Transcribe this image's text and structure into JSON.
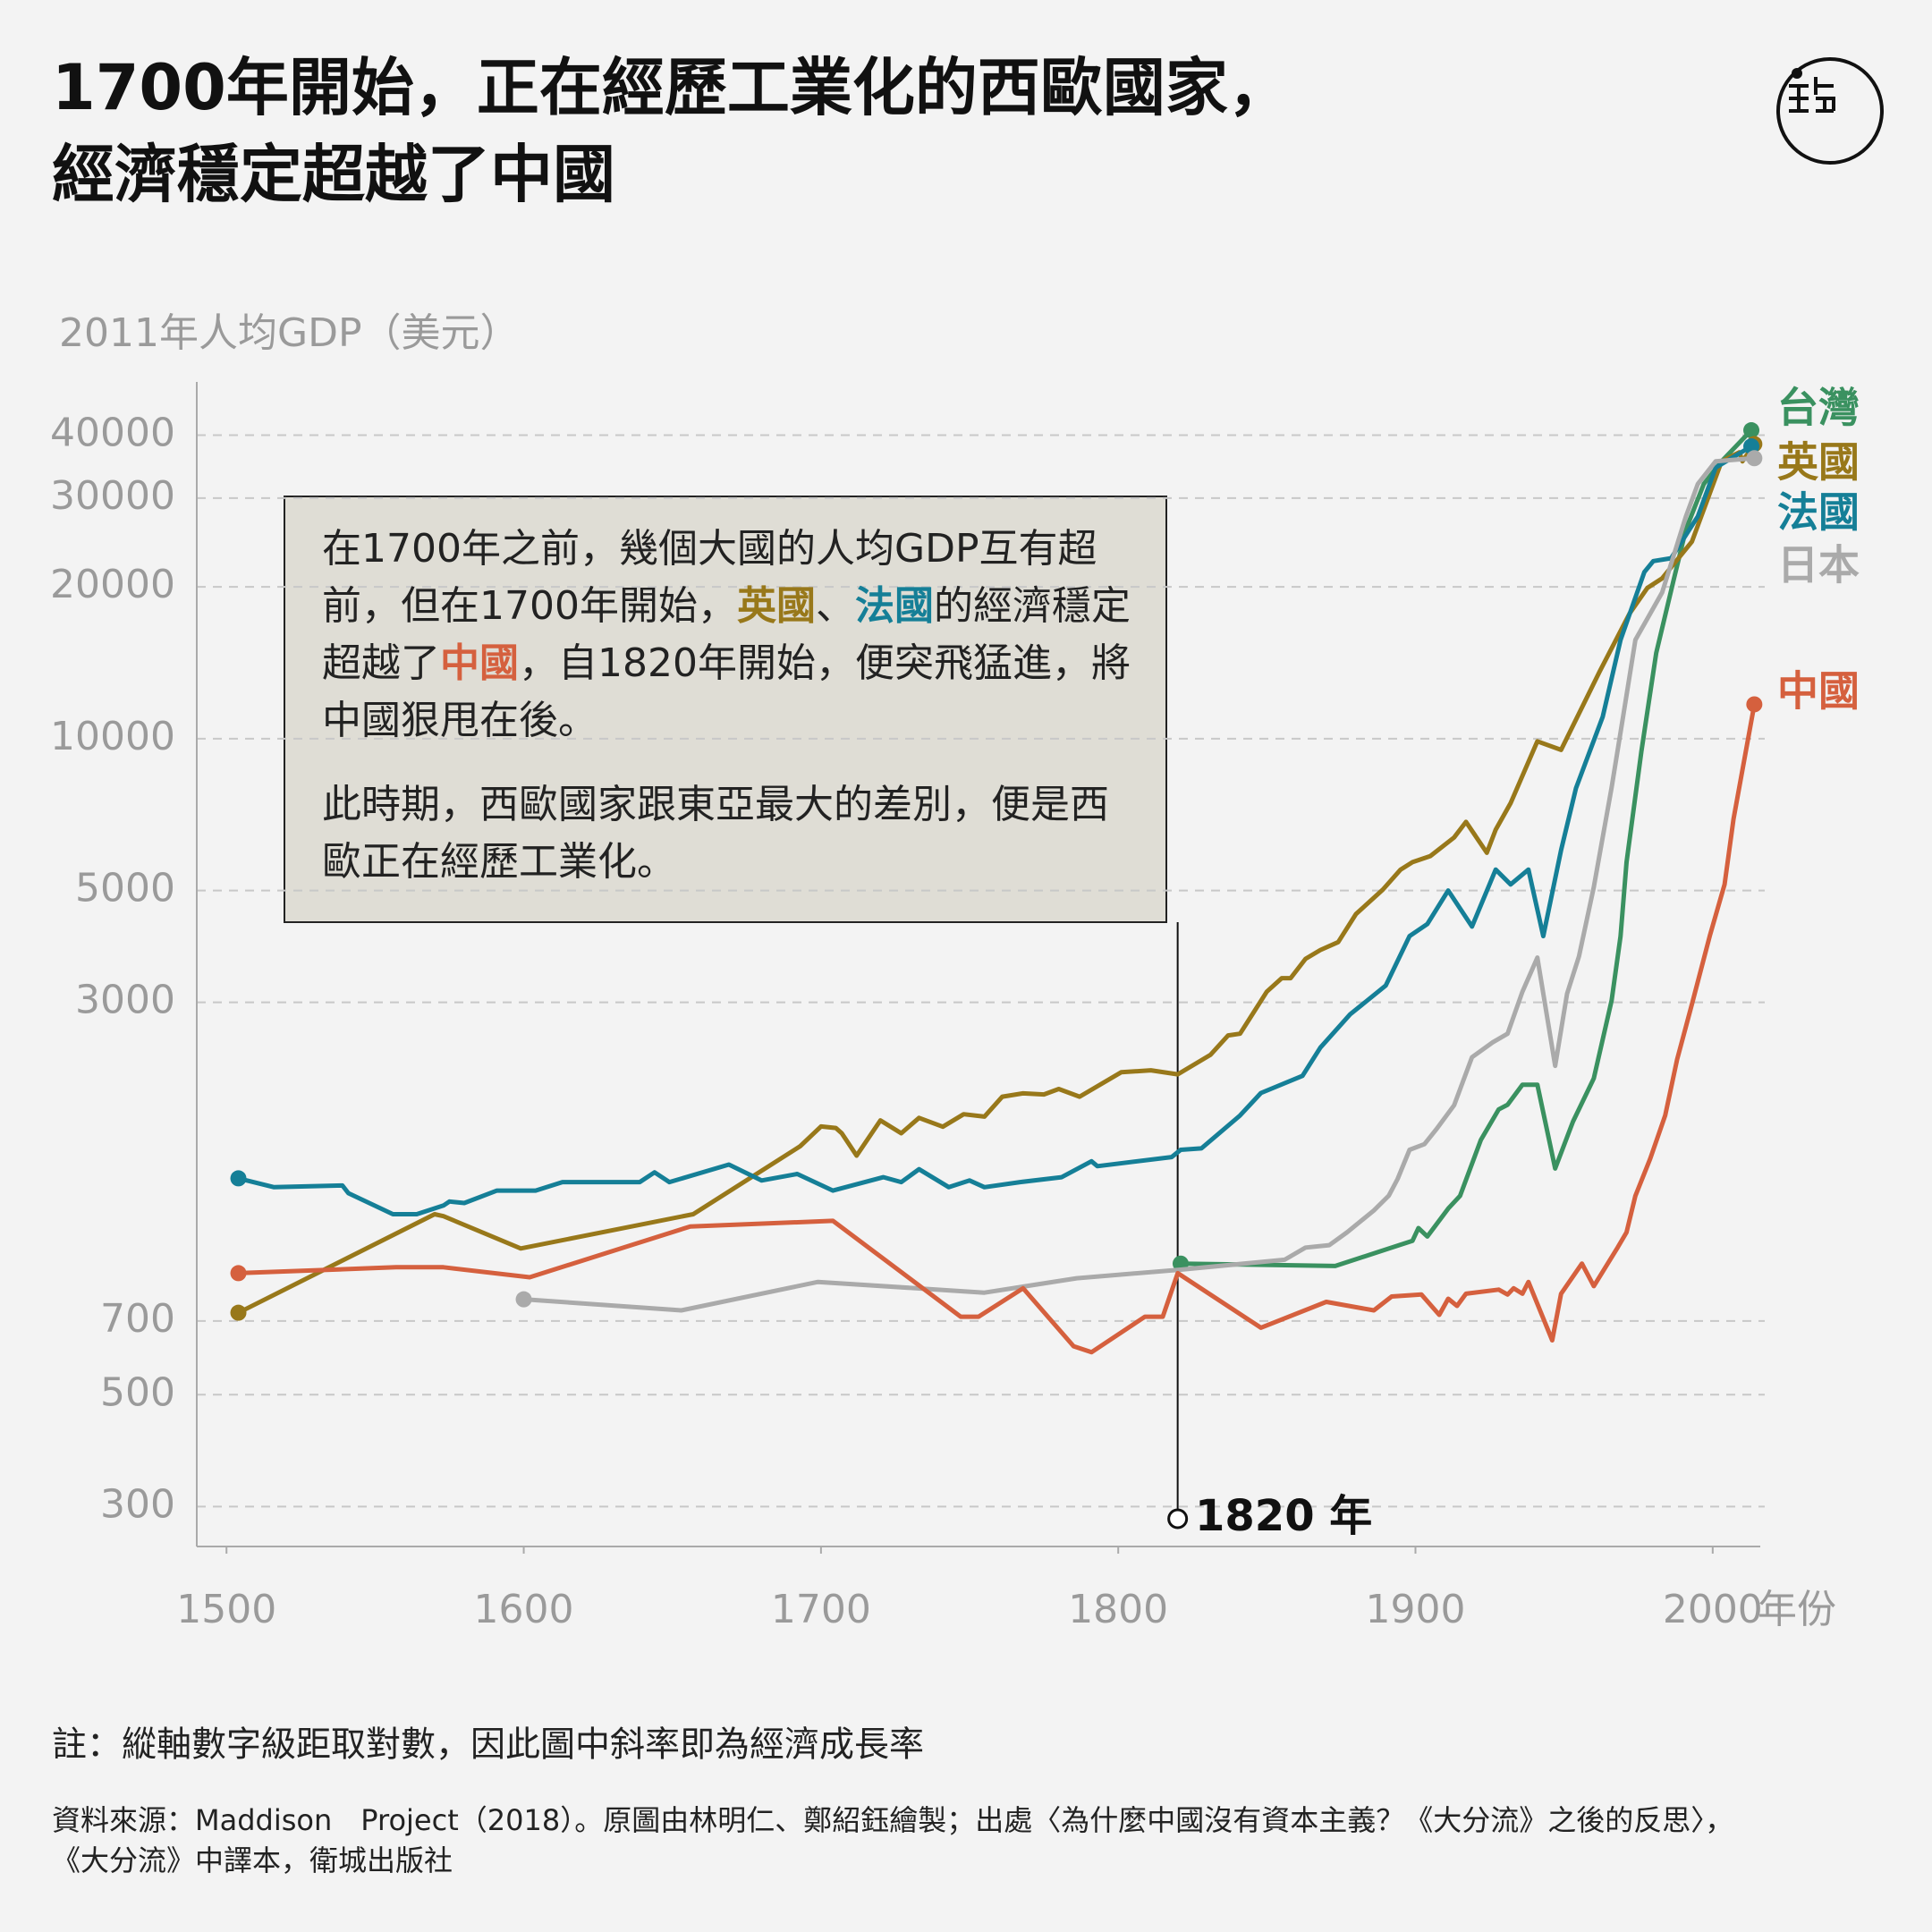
{
  "chart_data": {
    "type": "line",
    "title": [
      "1700年開始，正在經歷工業化的西歐國家，",
      "經濟穩定超越了中國"
    ],
    "y_label": "2011年人均GDP（美元）",
    "x_label": "年份",
    "log_scale": true,
    "grid": true,
    "xlim": [
      1490,
      2016
    ],
    "xticks": [
      1500,
      1600,
      1700,
      1800,
      1900,
      2000
    ],
    "ylim": [
      250,
      51000
    ],
    "yticks": [
      300,
      500,
      700,
      3000,
      5000,
      10000,
      20000,
      30000,
      40000
    ],
    "series": [
      {
        "name": "台灣",
        "color": "#3a9160",
        "x": [
          1821,
          1873,
          1899,
          1901,
          1904,
          1911,
          1915,
          1922,
          1928,
          1931,
          1936,
          1941,
          1947,
          1953,
          1960,
          1966,
          1969,
          1971,
          1976,
          1981,
          1987,
          1991,
          1997,
          2003,
          2013
        ],
        "values": [
          910,
          900,
          1010,
          1070,
          1030,
          1170,
          1240,
          1600,
          1840,
          1880,
          2060,
          2060,
          1405,
          1740,
          2120,
          3025,
          4060,
          5690,
          9440,
          14800,
          20800,
          26000,
          32000,
          35500,
          40900
        ]
      },
      {
        "name": "英國",
        "color": "#98781a",
        "x": [
          1504,
          1570,
          1573,
          1599,
          1657,
          1693,
          1700,
          1705,
          1707,
          1712,
          1720,
          1727,
          1733,
          1741,
          1748,
          1755,
          1761,
          1768,
          1775,
          1780,
          1787,
          1801,
          1811,
          1820,
          1831,
          1837,
          1841,
          1850,
          1855,
          1858,
          1863,
          1868,
          1874,
          1880,
          1889,
          1895,
          1899,
          1905,
          1913,
          1917,
          1924,
          1927,
          1932,
          1941,
          1949,
          1962,
          1972,
          1978,
          1983,
          1993,
          2003,
          2009,
          2010,
          2014
        ],
        "values": [
          727,
          1140,
          1130,
          975,
          1140,
          1555,
          1702,
          1690,
          1650,
          1490,
          1750,
          1650,
          1770,
          1700,
          1800,
          1780,
          1950,
          1980,
          1970,
          2020,
          1950,
          2180,
          2200,
          2160,
          2360,
          2580,
          2600,
          3150,
          3350,
          3350,
          3660,
          3810,
          3950,
          4490,
          5020,
          5500,
          5690,
          5850,
          6370,
          6840,
          5940,
          6600,
          7450,
          9880,
          9500,
          13600,
          17700,
          19900,
          20800,
          24600,
          35500,
          37000,
          35500,
          38400
        ]
      },
      {
        "name": "法國",
        "color": "#157f97",
        "x": [
          1504,
          1516,
          1539,
          1541,
          1556,
          1564,
          1573,
          1575,
          1580,
          1591,
          1604,
          1613,
          1639,
          1644,
          1649,
          1669,
          1680,
          1692,
          1704,
          1721,
          1727,
          1733,
          1743,
          1750,
          1755,
          1767,
          1781,
          1791,
          1793,
          1818,
          1821,
          1828,
          1841,
          1848,
          1862,
          1868,
          1878,
          1890,
          1898,
          1904,
          1911,
          1919,
          1927,
          1932,
          1938,
          1943,
          1949,
          1954,
          1963,
          1969,
          1977,
          1980,
          1986,
          1995,
          2001,
          2013
        ],
        "values": [
          1343,
          1290,
          1300,
          1255,
          1140,
          1140,
          1186,
          1208,
          1200,
          1270,
          1270,
          1320,
          1320,
          1380,
          1320,
          1430,
          1330,
          1370,
          1270,
          1350,
          1320,
          1400,
          1290,
          1330,
          1290,
          1320,
          1350,
          1452,
          1420,
          1480,
          1530,
          1540,
          1790,
          1983,
          2145,
          2440,
          2840,
          3240,
          4060,
          4290,
          5000,
          4240,
          5500,
          5140,
          5500,
          4060,
          6010,
          7980,
          11060,
          15700,
          21400,
          22500,
          22800,
          27600,
          34500,
          38000
        ]
      },
      {
        "name": "日本",
        "color": "#aaaaaa",
        "x": [
          1600,
          1653,
          1699,
          1755,
          1786,
          1821,
          1856,
          1863,
          1871,
          1877,
          1886,
          1891,
          1894,
          1898,
          1903,
          1907,
          1913,
          1919,
          1926,
          1931,
          1936,
          1941,
          1947,
          1951,
          1955,
          1960,
          1966,
          1970,
          1974,
          1983,
          1991,
          1995,
          2001,
          2014
        ],
        "values": [
          773,
          735,
          837,
          797,
          851,
          885,
          926,
          979,
          990,
          1050,
          1160,
          1240,
          1340,
          1530,
          1570,
          1680,
          1875,
          2335,
          2500,
          2600,
          3150,
          3680,
          2245,
          3120,
          3700,
          5080,
          8000,
          11190,
          15700,
          19500,
          27600,
          32000,
          35500,
          36000
        ]
      },
      {
        "name": "中國",
        "color": "#d5603e",
        "x": [
          1504,
          1557,
          1573,
          1602,
          1656,
          1704,
          1747,
          1753,
          1768,
          1785,
          1791,
          1809,
          1815,
          1820,
          1848,
          1870,
          1886,
          1892,
          1902,
          1908,
          1911,
          1914,
          1917,
          1928,
          1931,
          1933,
          1936,
          1938,
          1946,
          1949,
          1956,
          1960,
          1968,
          1971,
          1974,
          1979,
          1984,
          1988,
          1993,
          1999,
          2004,
          2007,
          2014
        ],
        "values": [
          871,
          895,
          895,
          855,
          1078,
          1106,
          714,
          714,
          813,
          624,
          607,
          714,
          714,
          871,
          679,
          764,
          735,
          783,
          790,
          720,
          775,
          750,
          793,
          808,
          790,
          813,
          793,
          837,
          641,
          793,
          910,
          821,
          979,
          1050,
          1240,
          1470,
          1790,
          2310,
          2975,
          4060,
          5140,
          6930,
          11700
        ]
      }
    ],
    "marker": {
      "x": 1820,
      "label": "1820 年"
    },
    "annotation": [
      [
        {
          "text": "在1700年之前，幾個大國的人均GDP互有超前，但在1700年開始，"
        },
        {
          "text": "英國",
          "color": "#98781a"
        },
        {
          "text": "、"
        },
        {
          "text": "法國",
          "color": "#157f97"
        },
        {
          "text": "的經濟穩定超越了"
        },
        {
          "text": "中國",
          "color": "#d5603e"
        },
        {
          "text": "，自1820年開始，便突飛猛進，將中國狠甩在後。"
        }
      ],
      [
        {
          "text": "此時期，西歐國家跟東亞最大的差別，便是西歐正在經歷工業化。"
        }
      ]
    ],
    "note": "註：縱軸數字級距取對數，因此圖中斜率即為經濟成長率",
    "source": [
      "資料來源：Maddison　Project（2018）。原圖由林明仁、鄭紹鈺繪製；出處〈為什麼中國沒有資本主義？《大分流》之後的反思〉，",
      "《大分流》中譯本，衛城出版社"
    ]
  }
}
